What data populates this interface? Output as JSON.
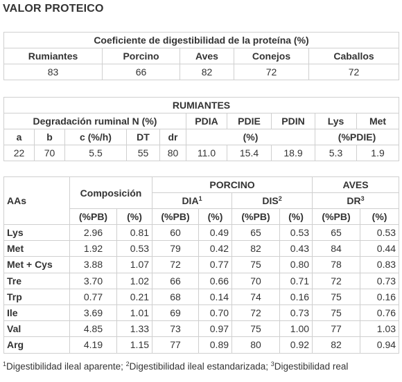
{
  "title": "VALOR PROTEICO",
  "table1": {
    "header": "Coeficiente de digestibilidad de la proteína (%)",
    "columns": [
      "Rumiantes",
      "Porcino",
      "Aves",
      "Conejos",
      "Caballos"
    ],
    "values": [
      "83",
      "66",
      "82",
      "72",
      "72"
    ]
  },
  "table2": {
    "header": "RUMIANTES",
    "degradacion_label": "Degradación ruminal N (%)",
    "pdia": "PDIA",
    "pdie": "PDIE",
    "pdin": "PDIN",
    "lys": "Lys",
    "met": "Met",
    "sub_labels": [
      "a",
      "b",
      "c (%/h)",
      "DT",
      "dr"
    ],
    "pdi_unit": "(%)",
    "aa_unit": "(%PDIE)",
    "values": [
      "22",
      "70",
      "5.5",
      "55",
      "80",
      "11.0",
      "15.4",
      "18.9",
      "5.3",
      "1.9"
    ]
  },
  "table3": {
    "porcino": "PORCINO",
    "aves": "AVES",
    "aas": "AAs",
    "composicion": "Composición",
    "dia": "DIA",
    "dis": "DIS",
    "dr": "DR",
    "sup1": "1",
    "sup2": "2",
    "sup3": "3",
    "units": [
      "(%PB)",
      "(%)",
      "(%PB)",
      "(%)",
      "(%PB)",
      "(%)",
      "(%PB)",
      "(%)"
    ],
    "rows": [
      {
        "aa": "Lys",
        "v": [
          "2.96",
          "0.81",
          "60",
          "0.49",
          "65",
          "0.53",
          "65",
          "0.53"
        ]
      },
      {
        "aa": "Met",
        "v": [
          "1.92",
          "0.53",
          "79",
          "0.42",
          "82",
          "0.43",
          "84",
          "0.44"
        ]
      },
      {
        "aa": "Met + Cys",
        "v": [
          "3.88",
          "1.07",
          "72",
          "0.77",
          "75",
          "0.80",
          "78",
          "0.83"
        ]
      },
      {
        "aa": "Tre",
        "v": [
          "3.70",
          "1.02",
          "66",
          "0.66",
          "70",
          "0.71",
          "72",
          "0.73"
        ]
      },
      {
        "aa": "Trp",
        "v": [
          "0.77",
          "0.21",
          "68",
          "0.14",
          "74",
          "0.16",
          "75",
          "0.16"
        ]
      },
      {
        "aa": "Ile",
        "v": [
          "3.69",
          "1.01",
          "69",
          "0.70",
          "72",
          "0.73",
          "75",
          "0.76"
        ]
      },
      {
        "aa": "Val",
        "v": [
          "4.85",
          "1.33",
          "73",
          "0.97",
          "75",
          "1.00",
          "77",
          "1.03"
        ]
      },
      {
        "aa": "Arg",
        "v": [
          "4.19",
          "1.15",
          "77",
          "0.89",
          "80",
          "0.92",
          "82",
          "0.94"
        ]
      }
    ]
  },
  "footnote": {
    "n1": "1",
    "t1": "Digestibilidad ileal aparente; ",
    "n2": "2",
    "t2": "Digestibilidad ileal estandarizada; ",
    "n3": "3",
    "t3": "Digestibilidad real"
  }
}
